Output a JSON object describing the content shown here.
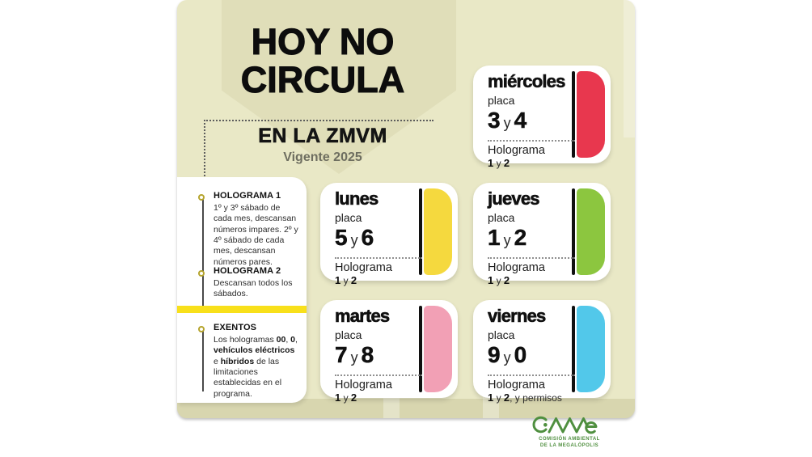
{
  "theme": {
    "canvas_bg": "#e9e8c6",
    "divider_yellow": "#f8e01b",
    "logo_green": "#4f8f3f",
    "ink": "#101010"
  },
  "title": {
    "line1": "HOY NO",
    "line2": "CIRCULA",
    "subtitle": "EN LA ZMVM",
    "validity": "Vigente 2025"
  },
  "sidebar": {
    "sections": [
      {
        "id": "holograma-1",
        "title": "HOLOGRAMA 1",
        "body": [
          {
            "text": "1º y 3º sábado de cada mes, descansan números impares. 2º y 4º sábado de cada mes, descansan números pares.",
            "bold": false
          }
        ]
      },
      {
        "id": "holograma-2",
        "title": "HOLOGRAMA 2",
        "body": [
          {
            "text": "Descansan todos los sábados.",
            "bold": false
          }
        ]
      },
      {
        "id": "exentos",
        "title": "EXENTOS",
        "body": [
          {
            "text": "Los hologramas ",
            "bold": false
          },
          {
            "text": "00",
            "bold": true
          },
          {
            "text": ", ",
            "bold": false
          },
          {
            "text": "0",
            "bold": true
          },
          {
            "text": ", ",
            "bold": false
          },
          {
            "text": "vehículos eléctricos",
            "bold": true
          },
          {
            "text": " e ",
            "bold": false
          },
          {
            "text": "híbridos",
            "bold": true
          },
          {
            "text": " de las limitaciones establecidas en el programa.",
            "bold": false
          }
        ]
      }
    ]
  },
  "cards": [
    {
      "id": "miercoles",
      "day": "miércoles",
      "placa_label": "placa",
      "plates": [
        "3",
        "4"
      ],
      "conjunction": "y",
      "holo_label": "Holograma",
      "holo_value": [
        {
          "text": "1",
          "bold": true
        },
        {
          "text": " y ",
          "bold": false
        },
        {
          "text": "2",
          "bold": true
        }
      ],
      "color": "#e8374e"
    },
    {
      "id": "lunes",
      "day": "lunes",
      "placa_label": "placa",
      "plates": [
        "5",
        "6"
      ],
      "conjunction": "y",
      "holo_label": "Holograma",
      "holo_value": [
        {
          "text": "1",
          "bold": true
        },
        {
          "text": " y ",
          "bold": false
        },
        {
          "text": "2",
          "bold": true
        }
      ],
      "color": "#f5d93e"
    },
    {
      "id": "jueves",
      "day": "jueves",
      "placa_label": "placa",
      "plates": [
        "1",
        "2"
      ],
      "conjunction": "y",
      "holo_label": "Holograma",
      "holo_value": [
        {
          "text": "1",
          "bold": true
        },
        {
          "text": " y ",
          "bold": false
        },
        {
          "text": "2",
          "bold": true
        }
      ],
      "color": "#8cc63f"
    },
    {
      "id": "martes",
      "day": "martes",
      "placa_label": "placa",
      "plates": [
        "7",
        "8"
      ],
      "conjunction": "y",
      "holo_label": "Holograma",
      "holo_value": [
        {
          "text": "1",
          "bold": true
        },
        {
          "text": " y ",
          "bold": false
        },
        {
          "text": "2",
          "bold": true
        }
      ],
      "color": "#f2a0b5"
    },
    {
      "id": "viernes",
      "day": "viernes",
      "placa_label": "placa",
      "plates": [
        "9",
        "0"
      ],
      "conjunction": "y",
      "holo_label": "Holograma",
      "holo_value": [
        {
          "text": "1",
          "bold": true
        },
        {
          "text": " y ",
          "bold": false
        },
        {
          "text": "2",
          "bold": true
        },
        {
          "text": ", y permisos",
          "bold": false
        }
      ],
      "color": "#52c8ea"
    }
  ],
  "footer": {
    "wordmark": "CAMe",
    "org_line1": "COMISIÓN AMBIENTAL",
    "org_line2": "DE LA MEGALÓPOLIS"
  }
}
